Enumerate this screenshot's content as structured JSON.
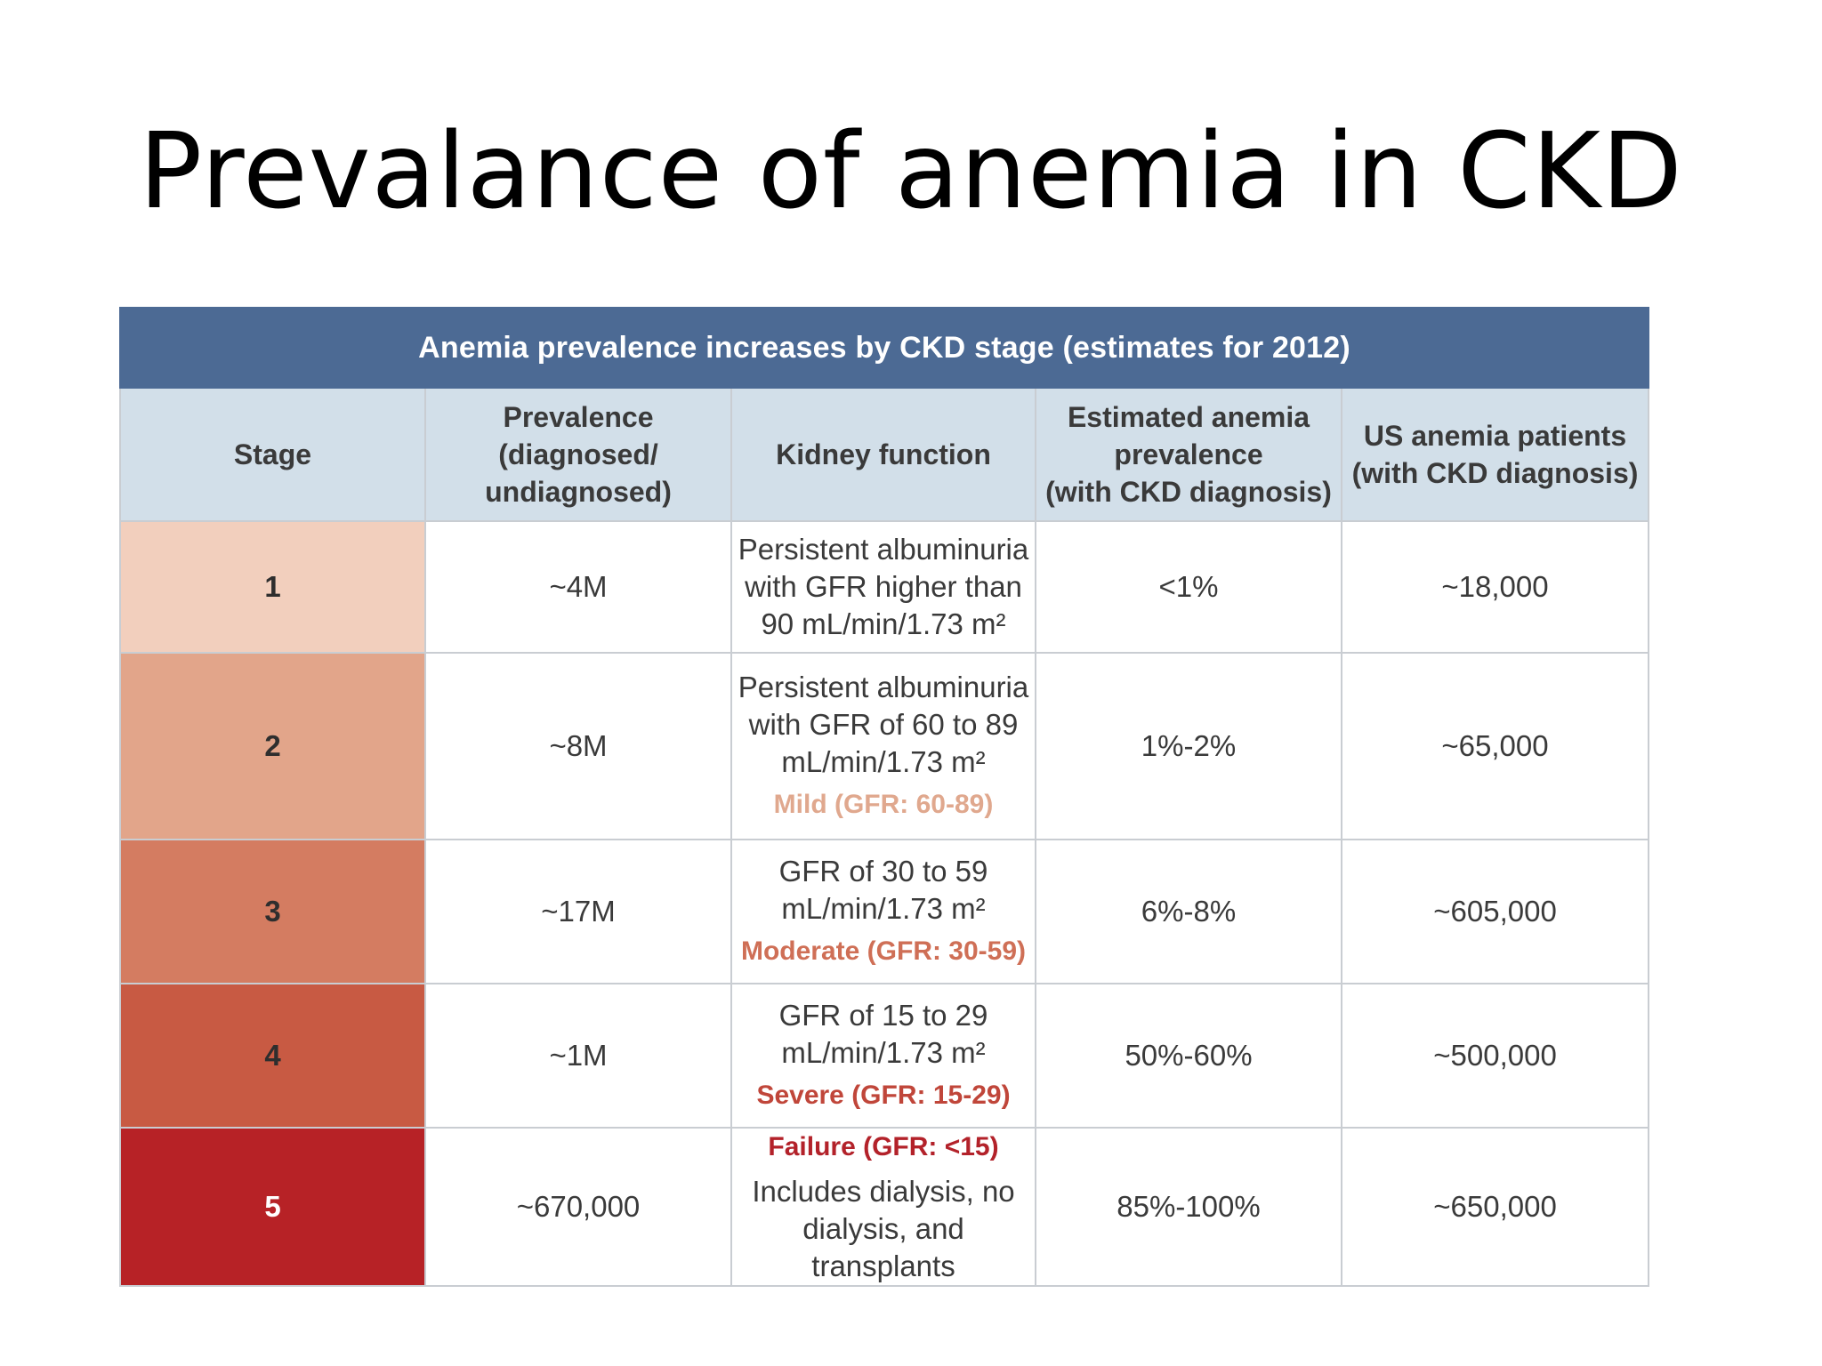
{
  "slide": {
    "title": "Prevalance of anemia in CKD"
  },
  "table": {
    "caption": "Anemia prevalence increases by CKD stage (estimates for 2012)",
    "headers": [
      "Stage",
      "Prevalence (diagnosed/ undiagnosed)",
      "Kidney function",
      "Estimated anemia prevalence (with CKD diagnosis)",
      "US anemia patients (with CKD diagnosis)"
    ],
    "header_lines": [
      [
        "Stage"
      ],
      [
        "Prevalence",
        "(diagnosed/",
        "undiagnosed)"
      ],
      [
        "Kidney function"
      ],
      [
        "Estimated anemia",
        "prevalence",
        "(with CKD diagnosis)"
      ],
      [
        "US anemia patients",
        "(with CKD diagnosis)"
      ]
    ],
    "rows": [
      {
        "stage": "1",
        "prevalence": "~4M",
        "kidney_function_lines": [
          "Persistent albuminuria",
          "with GFR higher than",
          "90 mL/min/1.73 m²"
        ],
        "severity_label": "",
        "severity_position": "after",
        "anemia_prevalence": "<1%",
        "us_patients": "~18,000",
        "stage_color": "#f2cfbd",
        "stage_text_color": "#2e2e2e",
        "severity_color": ""
      },
      {
        "stage": "2",
        "prevalence": "~8M",
        "kidney_function_lines": [
          "Persistent albuminuria",
          "with GFR of 60 to 89",
          "mL/min/1.73 m²"
        ],
        "severity_label": "Mild (GFR: 60-89)",
        "severity_position": "after",
        "anemia_prevalence": "1%-2%",
        "us_patients": "~65,000",
        "stage_color": "#e2a58a",
        "stage_text_color": "#2e2e2e",
        "severity_color": "#e0a88e"
      },
      {
        "stage": "3",
        "prevalence": "~17M",
        "kidney_function_lines": [
          "GFR of 30 to 59",
          "mL/min/1.73 m²"
        ],
        "severity_label": "Moderate (GFR: 30-59)",
        "severity_position": "after",
        "anemia_prevalence": "6%-8%",
        "us_patients": "~605,000",
        "stage_color": "#d47c61",
        "stage_text_color": "#2e2e2e",
        "severity_color": "#cf6f56"
      },
      {
        "stage": "4",
        "prevalence": "~1M",
        "kidney_function_lines": [
          "GFR of 15 to 29",
          "mL/min/1.73 m²"
        ],
        "severity_label": "Severe (GFR: 15-29)",
        "severity_position": "after",
        "anemia_prevalence": "50%-60%",
        "us_patients": "~500,000",
        "stage_color": "#c85a43",
        "stage_text_color": "#2e2e2e",
        "severity_color": "#c0463a"
      },
      {
        "stage": "5",
        "prevalence": "~670,000",
        "kidney_function_lines": [
          "Includes dialysis, no",
          "dialysis, and transplants"
        ],
        "severity_label": "Failure (GFR: <15)",
        "severity_position": "before",
        "anemia_prevalence": "85%-100%",
        "us_patients": "~650,000",
        "stage_color": "#b72226",
        "stage_text_color": "#ffffff",
        "severity_color": "#b3222a"
      }
    ],
    "colors": {
      "banner": "#4c6a94",
      "header_bg": "#d2dfe9",
      "border": "#c9cdd2"
    }
  }
}
